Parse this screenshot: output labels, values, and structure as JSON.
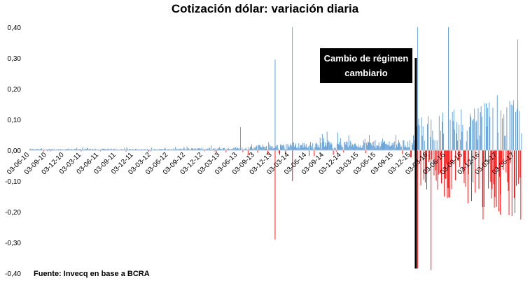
{
  "chart_data": {
    "type": "bar",
    "title": "Cotización dólar: variación diaria",
    "xlabel": "",
    "ylabel": "",
    "ylim": [
      -0.4,
      0.4
    ],
    "yticks": [
      "0,40",
      "0,30",
      "0,20",
      "0,10",
      "0,00",
      "-0,10",
      "-0,20",
      "-0,30",
      "-0,40"
    ],
    "x_ticks": [
      "03-06-10",
      "03-09-10",
      "03-12-10",
      "03-03-11",
      "03-06-11",
      "03-09-11",
      "03-12-11",
      "03-03-12",
      "03-06-12",
      "03-09-12",
      "03-12-12",
      "03-03-13",
      "03-06-13",
      "03-09-13",
      "03-12-13",
      "03-03-14",
      "03-06-14",
      "03-09-14",
      "03-12-14",
      "03-03-15",
      "03-06-15",
      "03-09-15",
      "03-12-15",
      "03-03-16",
      "03-06-16",
      "03-09-16",
      "03-12-16",
      "03-03-17",
      "03-06-17"
    ],
    "series": [
      {
        "color_positive": "#5b9bd5",
        "color_negative": "#ff0000",
        "description_points": [
          {
            "x": "03-06-10",
            "y": 0.002
          },
          {
            "x": "03-06-13",
            "y": 0.075
          },
          {
            "x": "03-12-13",
            "y": 0.295
          },
          {
            "x": "03-12-13",
            "y": -0.29
          },
          {
            "x": "03-03-14",
            "y": 0.4
          },
          {
            "x": "03-03-14",
            "y": -0.1
          },
          {
            "x": "03-09-14",
            "y": 0.06
          },
          {
            "x": "03-12-15",
            "y": -0.385
          },
          {
            "x": "03-12-15",
            "y": 0.4
          },
          {
            "x": "03-03-16",
            "y": -0.39
          },
          {
            "x": "03-06-16",
            "y": 0.4
          },
          {
            "x": "03-12-16",
            "y": -0.225
          },
          {
            "x": "03-03-17",
            "y": -0.21
          },
          {
            "x": "03-06-17",
            "y": 0.36
          }
        ]
      }
    ],
    "annotation": "Cambio de régimen cambiario",
    "source": "Fuente: Invecq en base a BCRA"
  },
  "colors": {
    "positive": "#5b9bd5",
    "negative": "#ff0000",
    "marker": "#000000"
  }
}
